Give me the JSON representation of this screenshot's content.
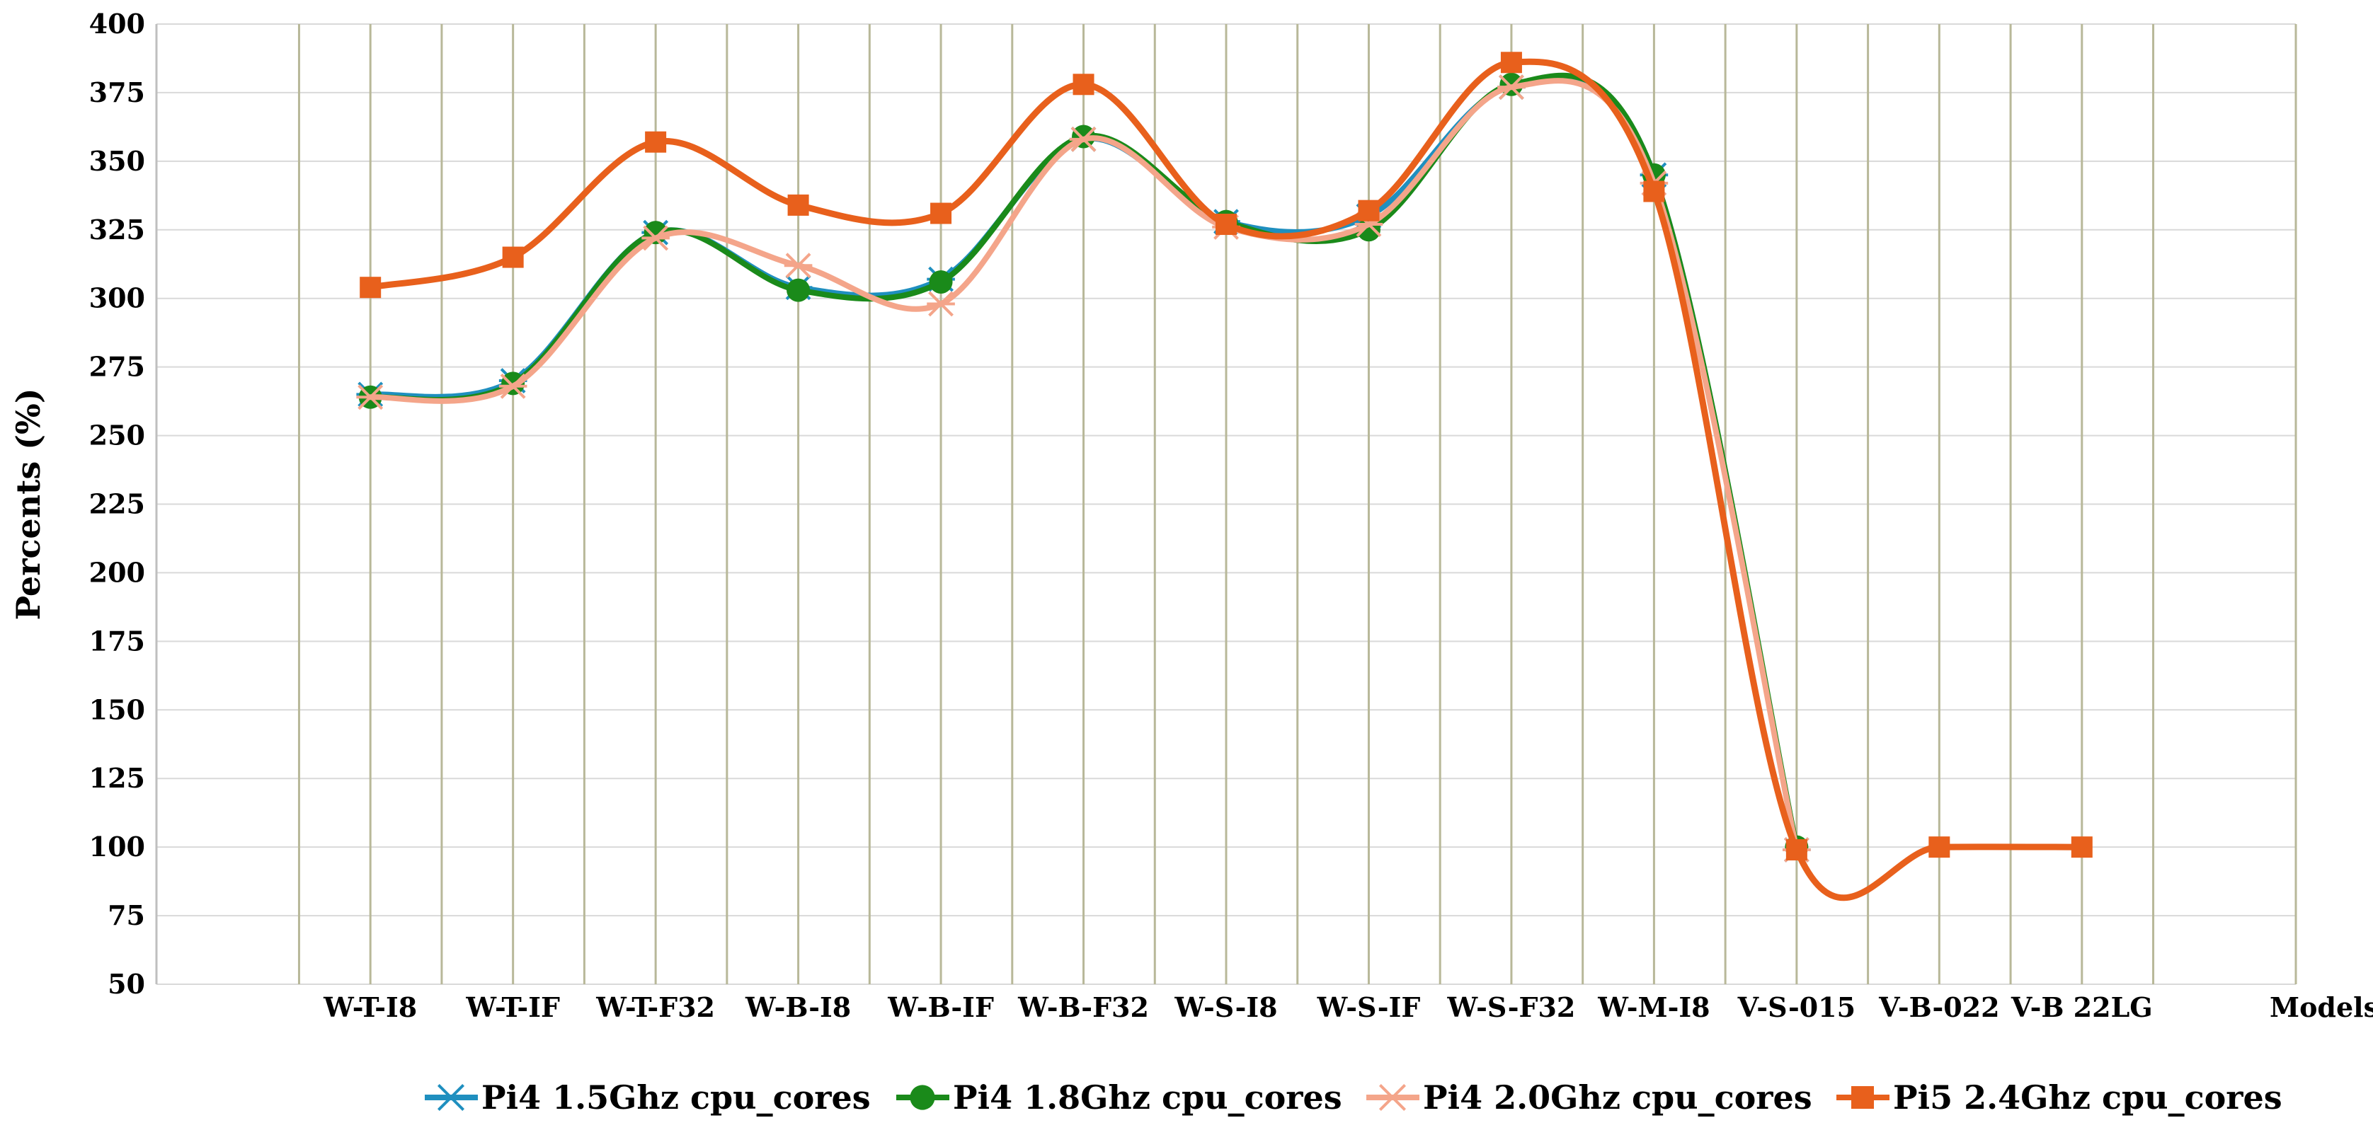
{
  "chart_data": {
    "type": "line",
    "ylabel": "Percents (%)",
    "xlabel": "Models",
    "ylim": [
      50,
      400
    ],
    "yticks": [
      50,
      75,
      100,
      125,
      150,
      175,
      200,
      225,
      250,
      275,
      300,
      325,
      350,
      375,
      400
    ],
    "categories": [
      "W-T-I8",
      "W-T-IF",
      "W-T-F32",
      "W-B-I8",
      "W-B-IF",
      "W-B-F32",
      "W-S-I8",
      "W-S-IF",
      "W-S-F32",
      "W-M-I8",
      "V-S-015",
      "V-B-022",
      "V-B 22LG"
    ],
    "grid": true,
    "smooth": true,
    "legend_position": "bottom",
    "series": [
      {
        "name": "Pi4 1.5Ghz cpu_cores",
        "color": "#1f8fbf",
        "marker": "x-cross",
        "values": [
          265,
          270,
          324,
          304,
          307,
          358,
          328,
          330,
          377,
          345,
          99,
          null,
          null
        ]
      },
      {
        "name": "Pi4 1.8Ghz cpu_cores",
        "color": "#1a8a1a",
        "marker": "circle",
        "values": [
          264,
          269,
          324,
          303,
          306,
          359,
          328,
          325,
          378,
          345,
          100,
          null,
          null
        ]
      },
      {
        "name": "Pi4 2.0Ghz cpu_cores",
        "color": "#f4a58a",
        "marker": "x-cross",
        "values": [
          264,
          268,
          322,
          312,
          298,
          358,
          326,
          327,
          377,
          342,
          99,
          null,
          null
        ]
      },
      {
        "name": "Pi5 2.4Ghz cpu_cores",
        "color": "#e8601c",
        "marker": "square",
        "values": [
          304,
          315,
          357,
          334,
          331,
          378,
          327,
          332,
          386,
          339,
          99,
          100,
          100
        ]
      }
    ]
  }
}
